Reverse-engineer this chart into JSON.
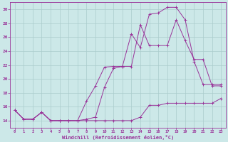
{
  "background_color": "#cce8e8",
  "grid_color": "#aacccc",
  "line_color": "#993399",
  "xlabel": "Windchill (Refroidissement éolien,°C)",
  "xlim": [
    -0.5,
    23.5
  ],
  "ylim": [
    13.0,
    31.0
  ],
  "yticks": [
    14,
    16,
    18,
    20,
    22,
    24,
    26,
    28,
    30
  ],
  "xticks": [
    0,
    1,
    2,
    3,
    4,
    5,
    6,
    7,
    8,
    9,
    10,
    11,
    12,
    13,
    14,
    15,
    16,
    17,
    18,
    19,
    20,
    21,
    22,
    23
  ],
  "curve1_x": [
    0,
    1,
    2,
    3,
    4,
    5,
    6,
    7,
    8,
    9,
    10,
    11,
    12,
    13,
    14,
    15,
    16,
    17,
    18,
    19,
    20,
    21,
    22,
    23
  ],
  "curve1_y": [
    15.5,
    14.2,
    14.2,
    15.2,
    14.0,
    14.0,
    14.0,
    14.0,
    14.0,
    14.0,
    14.0,
    14.0,
    14.0,
    14.0,
    14.5,
    16.2,
    16.2,
    16.5,
    16.5,
    16.5,
    16.5,
    16.5,
    16.5,
    17.2
  ],
  "curve2_x": [
    0,
    1,
    2,
    3,
    4,
    5,
    6,
    7,
    8,
    9,
    10,
    11,
    12,
    13,
    14,
    15,
    16,
    17,
    18,
    19,
    20,
    21,
    22,
    23
  ],
  "curve2_y": [
    15.5,
    14.2,
    14.2,
    15.2,
    14.0,
    14.0,
    14.0,
    14.0,
    16.8,
    19.0,
    21.7,
    21.8,
    21.8,
    26.5,
    24.5,
    29.3,
    29.5,
    30.3,
    30.3,
    28.5,
    22.5,
    19.2,
    19.2,
    19.2
  ],
  "curve3_x": [
    0,
    1,
    2,
    3,
    4,
    5,
    6,
    7,
    8,
    9,
    10,
    11,
    12,
    13,
    14,
    15,
    16,
    17,
    18,
    19,
    20,
    21,
    22,
    23
  ],
  "curve3_y": [
    15.5,
    14.2,
    14.2,
    15.2,
    14.0,
    14.0,
    14.0,
    14.0,
    14.2,
    14.5,
    18.8,
    21.5,
    21.8,
    21.8,
    27.8,
    24.8,
    24.8,
    24.8,
    28.5,
    25.5,
    22.8,
    22.8,
    19.0,
    19.0
  ]
}
